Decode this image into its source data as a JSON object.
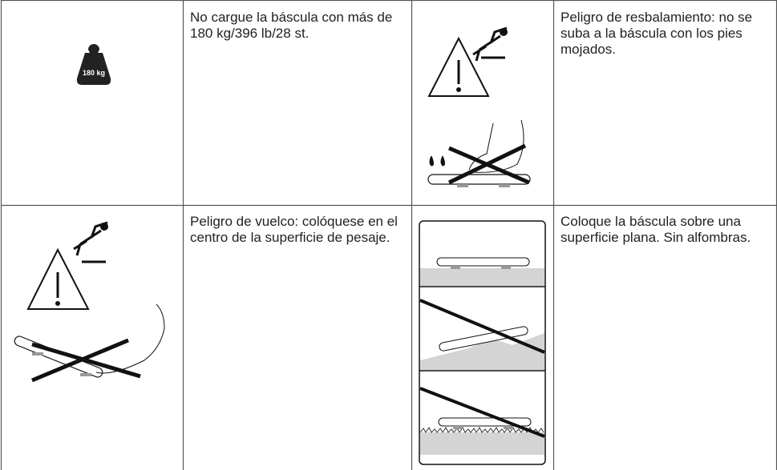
{
  "weight_icon": {
    "label": "180 kg"
  },
  "warnings": [
    {
      "text": "No cargue la báscula con más de 180 kg/396 lb/28 st."
    },
    {
      "text": "Peligro de resbalamiento: no se suba a la báscula con los pies mojados."
    },
    {
      "text": "Peligro de vuelco: colóquese en el centro de la superficie de pesaje."
    },
    {
      "text": "Coloque la báscula sobre una superficie plana. Sin alfombras."
    }
  ]
}
